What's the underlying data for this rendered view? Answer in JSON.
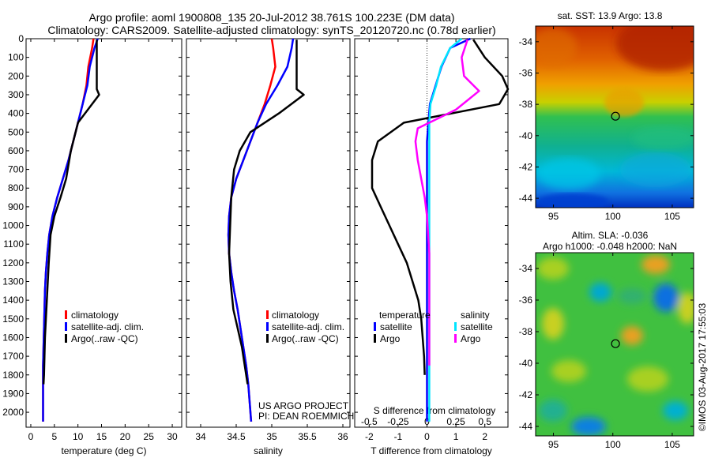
{
  "title": {
    "line1": "Argo profile: aoml 1900808_135 20-Jul-2012 38.761S 100.223E (DM data)",
    "line2": "Climatology: CARS2009. Satellite-adjusted climatology: synTS_20120720.nc (0.78d earlier)"
  },
  "colors": {
    "climatology": "#ff0000",
    "satellite": "#0000ff",
    "argo": "#000000",
    "sal_satellite": "#00e5ff",
    "sal_argo": "#ff00ff"
  },
  "legend": {
    "climatology": "climatology",
    "satellite_adj": "satellite-adj. clim.",
    "argo_raw": "Argo(..raw -QC)",
    "temperature": "temperature",
    "salinity": "salinity",
    "satellite": "satellite",
    "argo": "Argo"
  },
  "credits": {
    "project": "US ARGO PROJECT",
    "pi": "PI: DEAN ROEMMICH",
    "imos": "©IMOS 03-Aug-2017 17:55:03"
  },
  "maps": {
    "sst_title": "sat. SST: 13.9 Argo: 13.8",
    "sla_title1": "Altim. SLA: -0.036",
    "sla_title2": "Argo h1000: -0.048 h2000: NaN",
    "lat_ticks": [
      "-34",
      "-36",
      "-38",
      "-40",
      "-42",
      "-44"
    ],
    "lon_ticks": [
      "95",
      "100",
      "105"
    ]
  },
  "chart_data": [
    {
      "type": "line",
      "xlabel": "temperature (deg C)",
      "ylabel": "",
      "xlim": [
        -1,
        32
      ],
      "ylim": [
        2080,
        0
      ],
      "x_ticks": [
        0,
        5,
        10,
        15,
        20,
        25,
        30
      ],
      "x_tick_labels": [
        "0",
        "5",
        "10",
        "15",
        "20",
        "25",
        "30"
      ],
      "y_ticks": [
        0,
        100,
        200,
        300,
        400,
        500,
        600,
        700,
        800,
        900,
        1000,
        1100,
        1200,
        1300,
        1400,
        1500,
        1600,
        1700,
        1800,
        1900,
        2000
      ],
      "series": [
        {
          "name": "climatology",
          "x": [
            13.3,
            13.0,
            12.2,
            11.8,
            11.0,
            10.0,
            9.0,
            8.0,
            6.8,
            5.6,
            4.6,
            3.9,
            3.5,
            3.2,
            3.0,
            2.9,
            2.8,
            2.7,
            2.6,
            2.6,
            2.6,
            2.6
          ],
          "y": [
            0,
            50,
            150,
            250,
            350,
            450,
            550,
            650,
            750,
            850,
            950,
            1050,
            1150,
            1250,
            1350,
            1450,
            1550,
            1650,
            1750,
            1850,
            1950,
            2050
          ]
        },
        {
          "name": "satellite-adj. clim.",
          "x": [
            14.2,
            13.5,
            12.5,
            12.0,
            11.0,
            10.0,
            9.0,
            8.0,
            6.8,
            5.6,
            4.6,
            3.9,
            3.5,
            3.2,
            3.0,
            2.9,
            2.8,
            2.7,
            2.6,
            2.6,
            2.6,
            2.6
          ],
          "y": [
            0,
            50,
            150,
            250,
            350,
            450,
            550,
            650,
            750,
            850,
            950,
            1050,
            1150,
            1250,
            1350,
            1450,
            1550,
            1650,
            1750,
            1850,
            1950,
            2050
          ]
        },
        {
          "name": "Argo(..raw -QC)",
          "x": [
            14.0,
            14.0,
            14.0,
            14.0,
            14.5,
            13.0,
            10.0,
            8.5,
            7.5,
            6.3,
            5.0,
            4.2,
            3.8,
            3.5,
            3.2,
            3.0,
            2.9,
            2.8,
            2.7
          ],
          "y": [
            5,
            100,
            200,
            270,
            300,
            350,
            450,
            600,
            750,
            850,
            950,
            1050,
            1200,
            1350,
            1500,
            1600,
            1700,
            1800,
            1850
          ]
        }
      ]
    },
    {
      "type": "line",
      "xlabel": "salinity",
      "ylabel": "",
      "xlim": [
        33.8,
        36.1
      ],
      "ylim": [
        2080,
        0
      ],
      "x_ticks": [
        34,
        34.5,
        35,
        35.5,
        36
      ],
      "x_tick_labels": [
        "34",
        "34.5",
        "35",
        "35.5",
        "36"
      ],
      "series": [
        {
          "name": "climatology",
          "x": [
            35.0,
            35.02,
            35.05,
            34.98,
            34.9,
            34.8,
            34.7,
            34.6,
            34.5,
            34.43,
            34.4,
            34.39,
            34.4,
            34.43,
            34.47,
            34.52,
            34.56,
            34.6,
            34.64,
            34.67,
            34.69,
            34.71
          ],
          "y": [
            0,
            50,
            150,
            250,
            350,
            450,
            550,
            650,
            750,
            850,
            950,
            1050,
            1150,
            1250,
            1350,
            1450,
            1550,
            1650,
            1750,
            1850,
            1950,
            2050
          ]
        },
        {
          "name": "satellite-adj. clim.",
          "x": [
            35.3,
            35.28,
            35.22,
            35.08,
            34.92,
            34.8,
            34.7,
            34.6,
            34.5,
            34.43,
            34.4,
            34.39,
            34.4,
            34.43,
            34.47,
            34.52,
            34.56,
            34.6,
            34.64,
            34.67,
            34.69,
            34.71
          ],
          "y": [
            0,
            50,
            150,
            250,
            350,
            450,
            550,
            650,
            750,
            850,
            950,
            1050,
            1150,
            1250,
            1350,
            1450,
            1550,
            1650,
            1750,
            1850,
            1950,
            2050
          ]
        },
        {
          "name": "Argo(..raw -QC)",
          "x": [
            35.35,
            35.35,
            35.35,
            35.35,
            35.45,
            35.1,
            34.7,
            34.55,
            34.47,
            34.43,
            34.42,
            34.41,
            34.4,
            34.42,
            34.46,
            34.52,
            34.58,
            34.62,
            34.66
          ],
          "y": [
            5,
            100,
            200,
            270,
            300,
            400,
            500,
            600,
            700,
            850,
            950,
            1050,
            1150,
            1300,
            1450,
            1550,
            1650,
            1750,
            1850
          ]
        }
      ]
    },
    {
      "type": "line",
      "xlabel": "T difference from climatology",
      "x2label": "S difference from climatology",
      "xlim": [
        -2.5,
        2.8
      ],
      "ylim": [
        2080,
        0
      ],
      "x_ticks": [
        -2,
        -1,
        0,
        1,
        2
      ],
      "x_tick_labels": [
        "-2",
        "-1",
        "0",
        "1",
        "2"
      ],
      "x2_ticks": [
        -0.5,
        -0.25,
        0,
        0.25,
        0.5
      ],
      "x2_tick_labels": [
        "-0.5",
        "-0.25",
        "0",
        "0.25",
        "0.5"
      ],
      "x2lim": [
        -0.625,
        0.7
      ],
      "series": [
        {
          "name": "temperature satellite",
          "axis": "T",
          "x": [
            1.5,
            0.8,
            0.5,
            0.3,
            0.1,
            0.05,
            0.0,
            0.0,
            0.0,
            0.0,
            0.0,
            0.0,
            0.0,
            0.0,
            0.0,
            0.0,
            0.0,
            0.0,
            0.0,
            0.0,
            0.0,
            0.0
          ],
          "y": [
            0,
            50,
            150,
            250,
            350,
            450,
            550,
            650,
            750,
            850,
            950,
            1050,
            1150,
            1250,
            1350,
            1450,
            1550,
            1650,
            1750,
            1850,
            1950,
            2050
          ]
        },
        {
          "name": "temperature Argo",
          "axis": "T",
          "x": [
            1.6,
            2.0,
            2.6,
            2.8,
            2.5,
            -0.8,
            -1.7,
            -1.9,
            -1.9,
            -1.6,
            -1.3,
            -1.0,
            -0.7,
            -0.5,
            -0.3,
            -0.2,
            -0.15,
            -0.1,
            -0.08
          ],
          "y": [
            5,
            100,
            200,
            270,
            350,
            450,
            550,
            650,
            800,
            900,
            1000,
            1100,
            1200,
            1300,
            1400,
            1500,
            1600,
            1700,
            1800
          ]
        },
        {
          "name": "salinity satellite",
          "axis": "S",
          "x": [
            0.3,
            0.2,
            0.12,
            0.08,
            0.03,
            0.02,
            0.02,
            0.02,
            0.02,
            0.02,
            0.02,
            0.02,
            0.02,
            0.02,
            0.02,
            0.02,
            0.02,
            0.02,
            0.02,
            0.02,
            0.02,
            0.02
          ],
          "y": [
            0,
            50,
            150,
            250,
            350,
            450,
            550,
            650,
            750,
            850,
            950,
            1050,
            1150,
            1250,
            1350,
            1450,
            1550,
            1650,
            1750,
            1850,
            1950,
            2050
          ]
        },
        {
          "name": "salinity Argo",
          "axis": "S",
          "x": [
            0.35,
            0.3,
            0.32,
            0.45,
            0.25,
            -0.08,
            -0.1,
            -0.08,
            -0.05,
            -0.02,
            0.0,
            0.01,
            0.02,
            0.02,
            0.02,
            0.02,
            0.02,
            0.02,
            0.02
          ],
          "y": [
            5,
            100,
            200,
            280,
            380,
            480,
            550,
            650,
            750,
            850,
            950,
            1050,
            1150,
            1250,
            1350,
            1450,
            1550,
            1650,
            1750
          ]
        }
      ]
    },
    {
      "type": "heatmap",
      "title": "sat. SST: 13.9 Argo: 13.8",
      "xlim": [
        93.5,
        106.8
      ],
      "ylim": [
        -44.6,
        -33.0
      ],
      "marker": {
        "lon": 100.223,
        "lat": -38.761
      }
    },
    {
      "type": "heatmap",
      "title": "Altim. SLA: -0.036",
      "xlim": [
        93.5,
        106.8
      ],
      "ylim": [
        -44.6,
        -33.0
      ],
      "marker": {
        "lon": 100.223,
        "lat": -38.761
      }
    }
  ]
}
